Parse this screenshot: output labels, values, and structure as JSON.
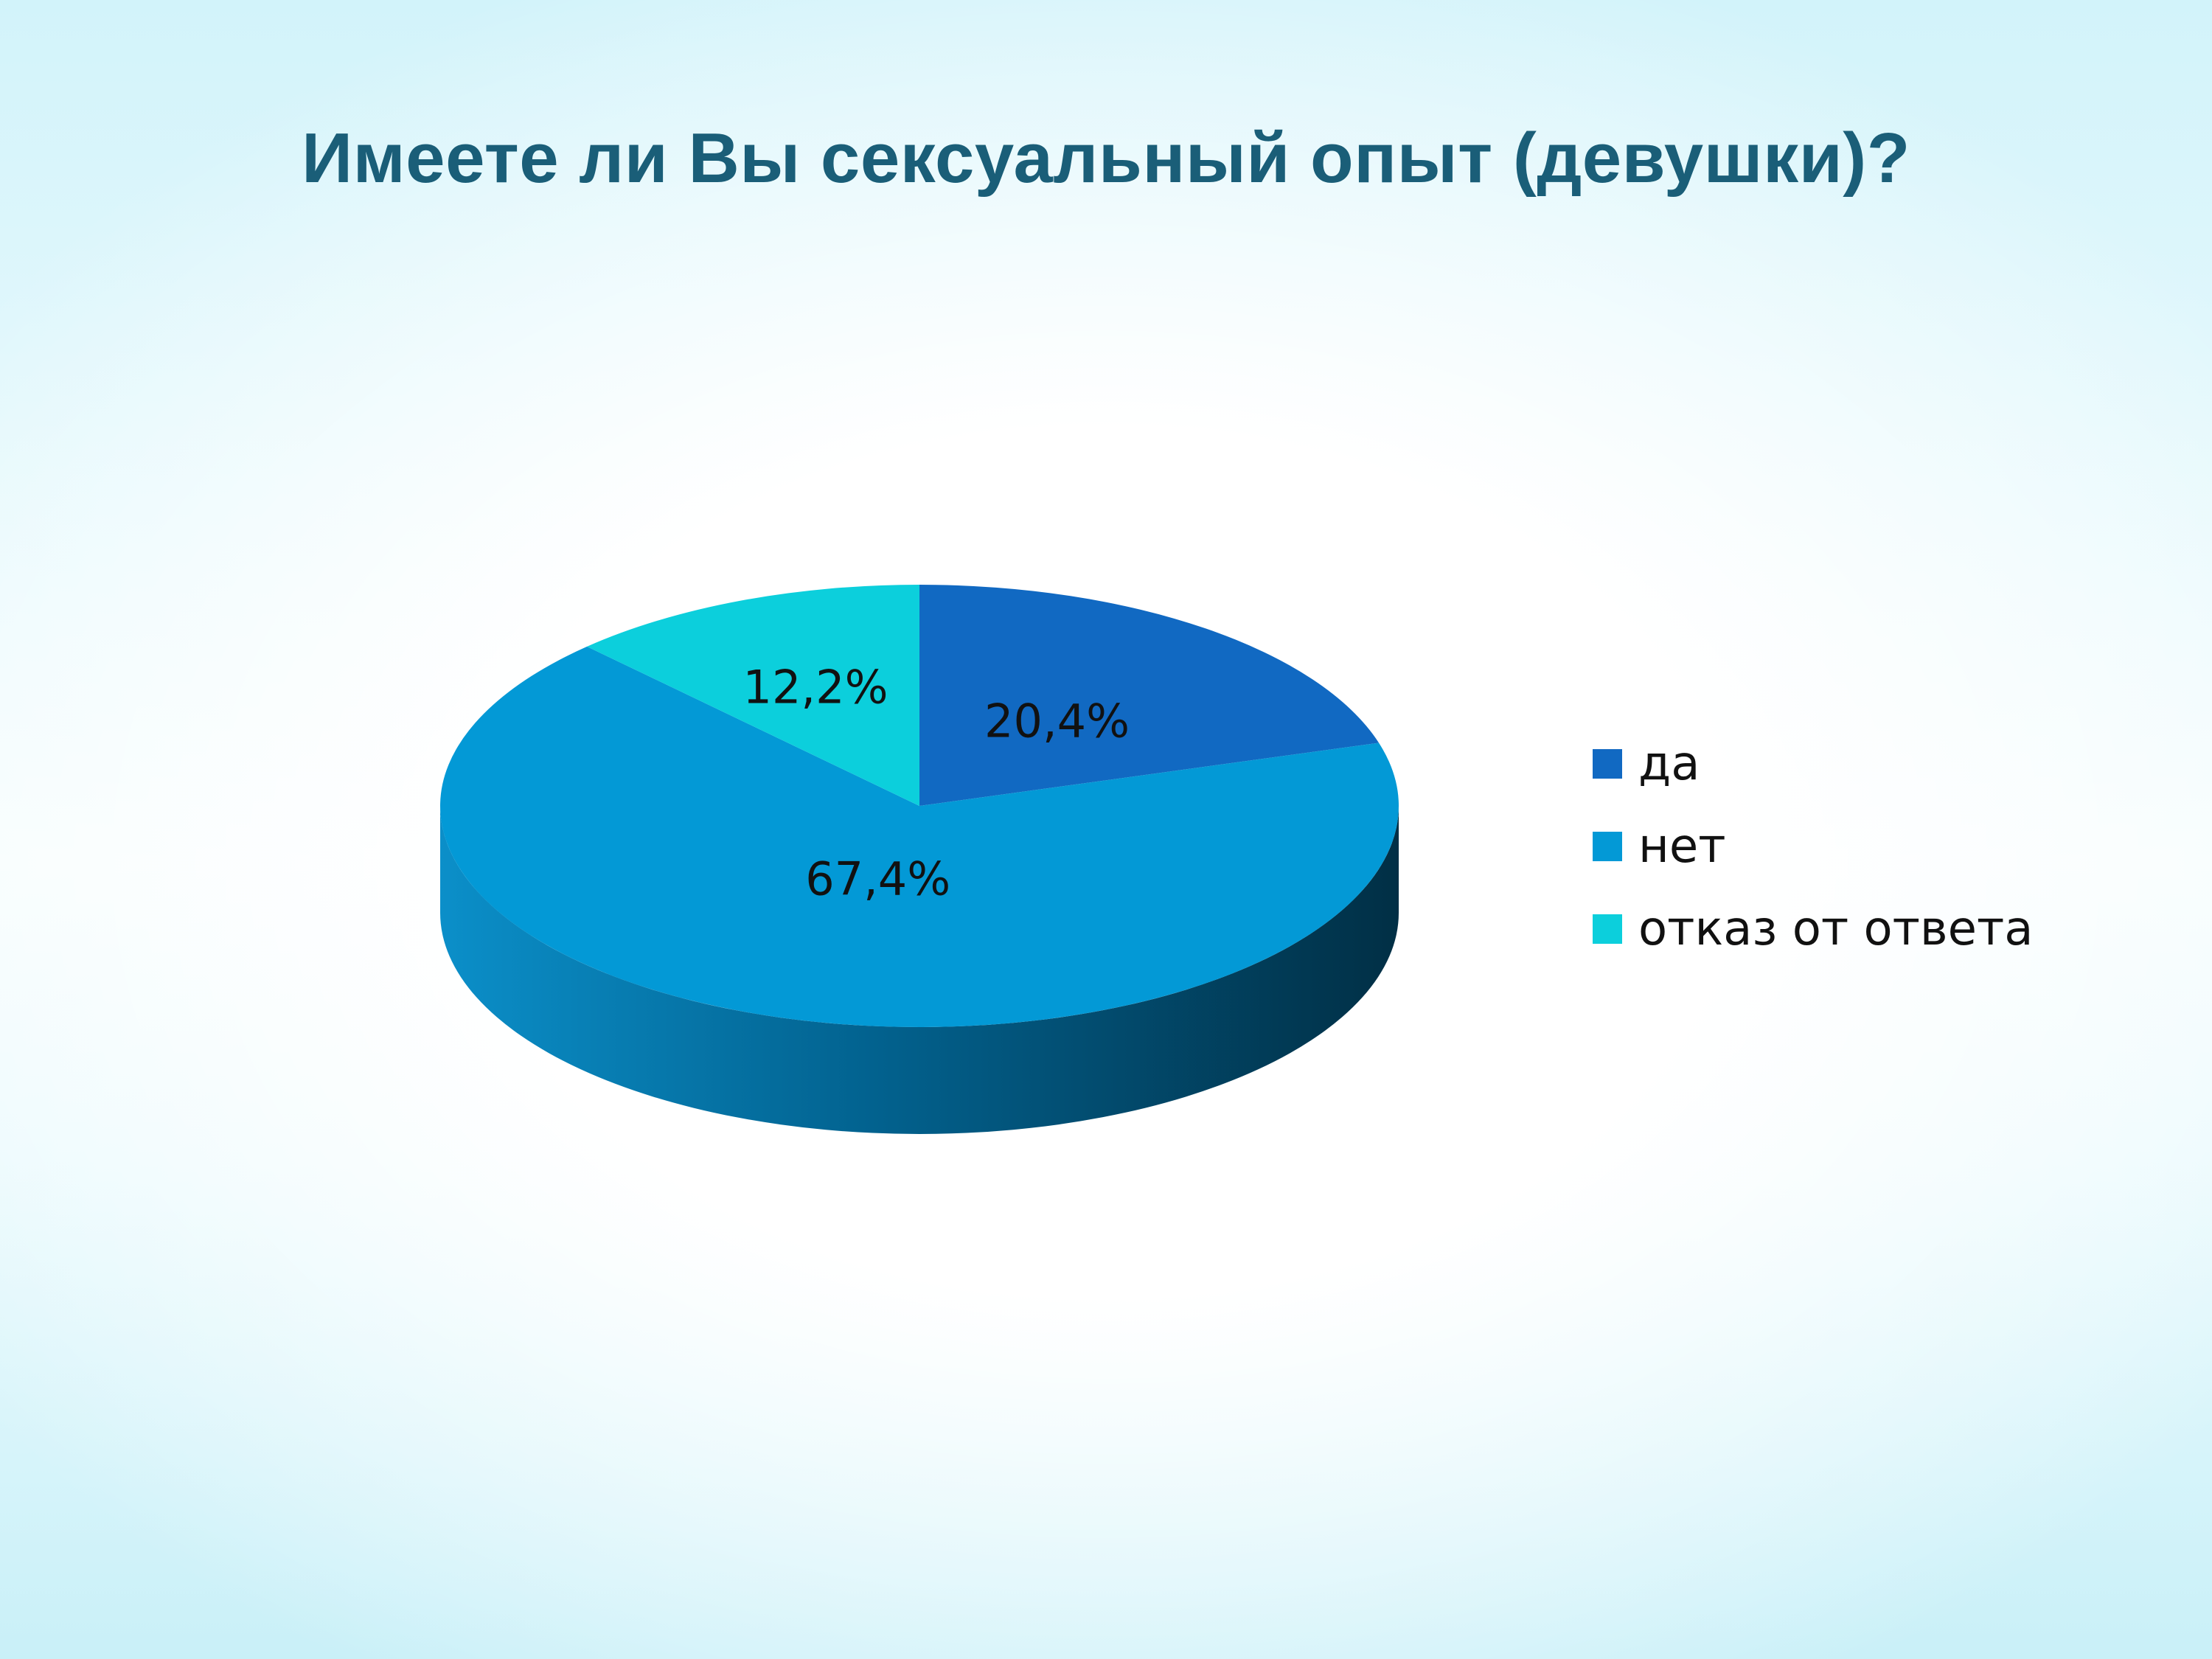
{
  "title": "Имеете ли Вы сексуальный опыт (девушки)?",
  "chart_data": {
    "type": "pie",
    "title": "Имеете ли Вы сексуальный опыт (девушки)?",
    "categories": [
      "да",
      "нет",
      "отказ от ответа"
    ],
    "values": [
      20.4,
      67.4,
      12.2
    ],
    "labels": [
      "20,4%",
      "67,4%",
      "12,2%"
    ],
    "colors": [
      "#1169c2",
      "#0399d6",
      "#0ccfdc"
    ],
    "side_colors": [
      "#0a4a8a",
      "#0286ba",
      "#08a9b5"
    ],
    "legend_position": "right",
    "style": "3d"
  }
}
